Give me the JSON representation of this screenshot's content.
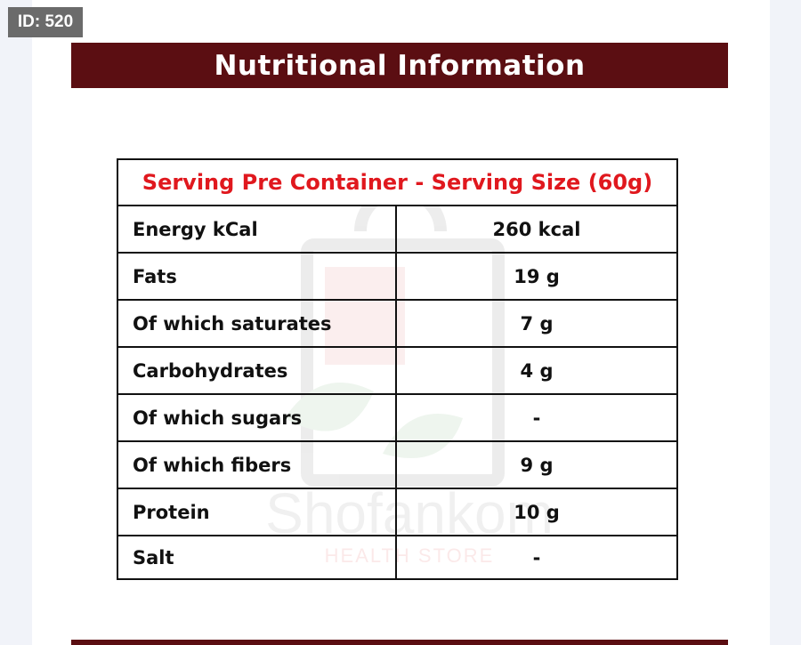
{
  "badge": {
    "id_label": "ID: 520"
  },
  "banner": {
    "title": "Nutritional Information"
  },
  "table": {
    "header": "Serving Pre Container - Serving Size (60g)",
    "rows": [
      {
        "label": "Energy kCal",
        "value": "260 kcal"
      },
      {
        "label": "Fats",
        "value": "19 g"
      },
      {
        "label": "Of which saturates",
        "value": "7 g"
      },
      {
        "label": "Carbohydrates",
        "value": "4 g"
      },
      {
        "label": "Of which sugars",
        "value": "-"
      },
      {
        "label": "Of which fibers",
        "value": "9 g"
      },
      {
        "label": "Protein",
        "value": "10 g"
      },
      {
        "label": "Salt",
        "value": "-"
      }
    ]
  },
  "watermark": {
    "brand": "Shofankom",
    "tagline": "HEALTH STORE"
  },
  "colors": {
    "banner_bg": "#5b0e12",
    "header_text": "#e0181e",
    "badge_bg": "#6b6b6b",
    "page_bg": "#f1f3f9"
  }
}
